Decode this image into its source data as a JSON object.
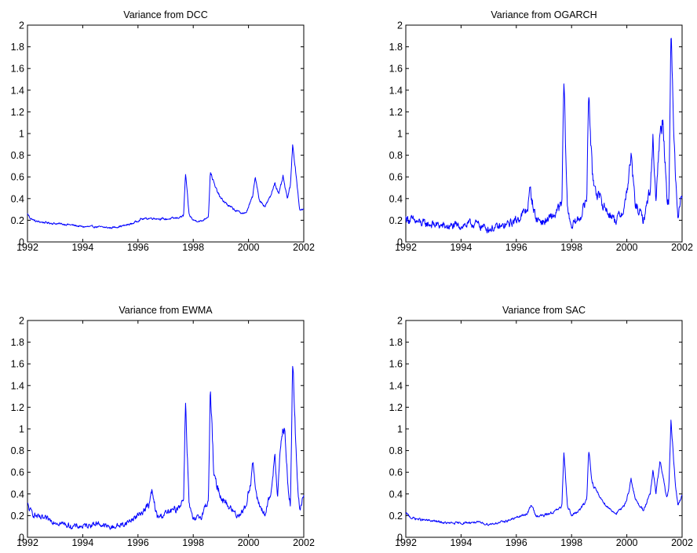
{
  "chart_data": [
    {
      "type": "line",
      "title": "Variance from DCC",
      "xlabel": "",
      "ylabel": "",
      "xlim": [
        1992,
        2002
      ],
      "ylim": [
        0,
        2
      ],
      "xticks": [
        1992,
        1994,
        1996,
        1998,
        2000,
        2002
      ],
      "xtick_labels": [
        "1992",
        "1994",
        "1996",
        "1998",
        "2000",
        "2002"
      ],
      "yticks": [
        0,
        0.2,
        0.4,
        0.6,
        0.8,
        1,
        1.2,
        1.4,
        1.6,
        1.8,
        2
      ],
      "ytick_labels": [
        "0",
        "0.2",
        "0.4",
        "0.6",
        "0.8",
        "1",
        "1.2",
        "1.4",
        "1.6",
        "1.8",
        "2"
      ],
      "grid": false,
      "series": [
        {
          "color": "#0000ff",
          "noise": 0.012,
          "x": [
            1992.0,
            1992.1,
            1992.3,
            1992.6,
            1993.0,
            1993.5,
            1994.0,
            1994.5,
            1995.0,
            1995.5,
            1995.8,
            1996.1,
            1996.5,
            1997.0,
            1997.4,
            1997.65,
            1997.72,
            1997.85,
            1998.0,
            1998.3,
            1998.55,
            1998.62,
            1998.8,
            1999.0,
            1999.3,
            1999.6,
            1999.9,
            2000.15,
            2000.25,
            2000.4,
            2000.6,
            2000.8,
            2000.95,
            2001.1,
            2001.25,
            2001.4,
            2001.52,
            2001.6,
            2001.75,
            2001.85,
            2002.0
          ],
          "y": [
            0.26,
            0.22,
            0.19,
            0.18,
            0.17,
            0.16,
            0.14,
            0.14,
            0.13,
            0.15,
            0.17,
            0.21,
            0.22,
            0.21,
            0.22,
            0.24,
            0.63,
            0.25,
            0.2,
            0.19,
            0.24,
            0.65,
            0.5,
            0.4,
            0.33,
            0.28,
            0.26,
            0.42,
            0.6,
            0.38,
            0.33,
            0.42,
            0.55,
            0.44,
            0.6,
            0.4,
            0.52,
            0.91,
            0.55,
            0.3,
            0.3
          ]
        }
      ]
    },
    {
      "type": "line",
      "title": "Variance from OGARCH",
      "xlabel": "",
      "ylabel": "",
      "xlim": [
        1992,
        2002
      ],
      "ylim": [
        0,
        2
      ],
      "xticks": [
        1992,
        1994,
        1996,
        1998,
        2000,
        2002
      ],
      "xtick_labels": [
        "1992",
        "1994",
        "1996",
        "1998",
        "2000",
        "2002"
      ],
      "yticks": [
        0,
        0.2,
        0.4,
        0.6,
        0.8,
        1,
        1.2,
        1.4,
        1.6,
        1.8,
        2
      ],
      "ytick_labels": [
        "0",
        "0.2",
        "0.4",
        "0.6",
        "0.8",
        "1",
        "1.2",
        "1.4",
        "1.6",
        "1.8",
        "2"
      ],
      "grid": false,
      "series": [
        {
          "color": "#0000ff",
          "noise": 0.05,
          "x": [
            1992.0,
            1992.2,
            1992.6,
            1993.0,
            1993.5,
            1994.0,
            1994.5,
            1995.0,
            1995.5,
            1996.0,
            1996.4,
            1996.5,
            1996.7,
            1997.0,
            1997.4,
            1997.65,
            1997.72,
            1997.85,
            1998.0,
            1998.3,
            1998.55,
            1998.62,
            1998.75,
            1999.0,
            1999.3,
            1999.6,
            1999.9,
            2000.1,
            2000.15,
            2000.3,
            2000.6,
            2000.85,
            2000.95,
            2001.05,
            2001.2,
            2001.3,
            2001.45,
            2001.52,
            2001.6,
            2001.75,
            2001.85,
            2002.0
          ],
          "y": [
            0.22,
            0.2,
            0.17,
            0.16,
            0.14,
            0.15,
            0.17,
            0.12,
            0.14,
            0.2,
            0.3,
            0.48,
            0.22,
            0.18,
            0.25,
            0.35,
            1.48,
            0.3,
            0.15,
            0.22,
            0.4,
            1.45,
            0.6,
            0.4,
            0.28,
            0.2,
            0.3,
            0.65,
            0.8,
            0.35,
            0.2,
            0.5,
            0.95,
            0.4,
            1.0,
            1.15,
            0.45,
            0.35,
            1.86,
            0.7,
            0.25,
            0.45
          ]
        }
      ]
    },
    {
      "type": "line",
      "title": "Variance from EWMA",
      "xlabel": "",
      "ylabel": "",
      "xlim": [
        1992,
        2002
      ],
      "ylim": [
        0,
        2
      ],
      "xticks": [
        1992,
        1994,
        1996,
        1998,
        2000,
        2002
      ],
      "xtick_labels": [
        "1992",
        "1994",
        "1996",
        "1998",
        "2000",
        "2002"
      ],
      "yticks": [
        0,
        0.2,
        0.4,
        0.6,
        0.8,
        1,
        1.2,
        1.4,
        1.6,
        1.8,
        2
      ],
      "ytick_labels": [
        "0",
        "0.2",
        "0.4",
        "0.6",
        "0.8",
        "1",
        "1.2",
        "1.4",
        "1.6",
        "1.8",
        "2"
      ],
      "grid": false,
      "series": [
        {
          "color": "#0000ff",
          "noise": 0.035,
          "x": [
            1992.0,
            1992.1,
            1992.4,
            1992.8,
            1993.2,
            1993.6,
            1994.0,
            1994.5,
            1995.0,
            1995.5,
            1996.0,
            1996.4,
            1996.5,
            1996.7,
            1997.0,
            1997.4,
            1997.65,
            1997.72,
            1997.85,
            1998.0,
            1998.3,
            1998.55,
            1998.62,
            1998.75,
            1999.0,
            1999.3,
            1999.6,
            1999.9,
            2000.1,
            2000.15,
            2000.3,
            2000.6,
            2000.85,
            2000.95,
            2001.05,
            2001.2,
            2001.3,
            2001.45,
            2001.52,
            2001.6,
            2001.75,
            2001.85,
            2002.0
          ],
          "y": [
            0.3,
            0.24,
            0.18,
            0.16,
            0.13,
            0.1,
            0.1,
            0.13,
            0.09,
            0.12,
            0.2,
            0.3,
            0.42,
            0.18,
            0.22,
            0.26,
            0.35,
            1.27,
            0.3,
            0.15,
            0.2,
            0.35,
            1.38,
            0.55,
            0.38,
            0.28,
            0.2,
            0.28,
            0.55,
            0.7,
            0.35,
            0.2,
            0.45,
            0.8,
            0.4,
            0.95,
            1.0,
            0.4,
            0.3,
            1.63,
            0.6,
            0.25,
            0.42
          ]
        }
      ]
    },
    {
      "type": "line",
      "title": "Variance from SAC",
      "xlabel": "",
      "ylabel": "",
      "xlim": [
        1992,
        2002
      ],
      "ylim": [
        0,
        2
      ],
      "xticks": [
        1992,
        1994,
        1996,
        1998,
        2000,
        2002
      ],
      "xtick_labels": [
        "1992",
        "1994",
        "1996",
        "1998",
        "2000",
        "2002"
      ],
      "yticks": [
        0,
        0.2,
        0.4,
        0.6,
        0.8,
        1,
        1.2,
        1.4,
        1.6,
        1.8,
        2
      ],
      "ytick_labels": [
        "0",
        "0.2",
        "0.4",
        "0.6",
        "0.8",
        "1",
        "1.2",
        "1.4",
        "1.6",
        "1.8",
        "2"
      ],
      "grid": false,
      "series": [
        {
          "color": "#0000ff",
          "noise": 0.015,
          "x": [
            1992.0,
            1992.2,
            1992.6,
            1993.0,
            1993.5,
            1994.0,
            1994.5,
            1995.0,
            1995.5,
            1996.0,
            1996.4,
            1996.55,
            1996.7,
            1997.0,
            1997.4,
            1997.65,
            1997.72,
            1997.85,
            1998.0,
            1998.3,
            1998.55,
            1998.62,
            1998.75,
            1999.0,
            1999.3,
            1999.6,
            1999.9,
            2000.1,
            2000.15,
            2000.3,
            2000.6,
            2000.85,
            2000.95,
            2001.05,
            2001.2,
            2001.3,
            2001.45,
            2001.52,
            2001.6,
            2001.75,
            2001.85,
            2002.0
          ],
          "y": [
            0.22,
            0.18,
            0.16,
            0.15,
            0.13,
            0.13,
            0.14,
            0.12,
            0.14,
            0.18,
            0.22,
            0.3,
            0.2,
            0.2,
            0.24,
            0.28,
            0.8,
            0.3,
            0.2,
            0.25,
            0.35,
            0.81,
            0.5,
            0.38,
            0.28,
            0.22,
            0.28,
            0.45,
            0.55,
            0.35,
            0.25,
            0.4,
            0.62,
            0.4,
            0.7,
            0.58,
            0.35,
            0.45,
            1.07,
            0.5,
            0.3,
            0.38
          ]
        }
      ]
    }
  ]
}
